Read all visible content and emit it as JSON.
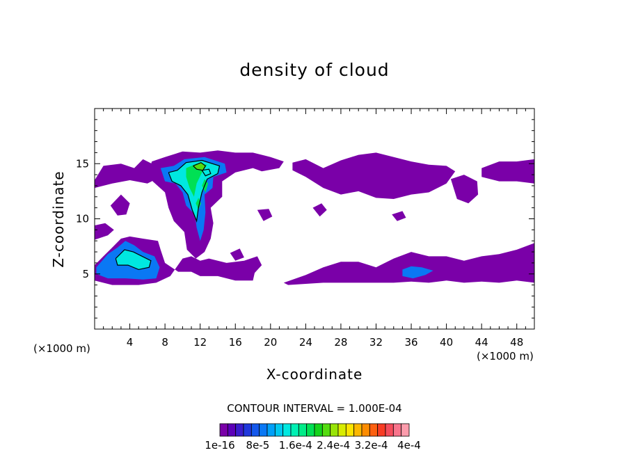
{
  "chart_data": {
    "type": "heatmap",
    "title": "density of cloud",
    "xlabel": "X-coordinate",
    "ylabel": "Z-coordinate",
    "x_unit_left": "(×1000 m)",
    "x_unit_right": "(×1000 m)",
    "xlim": [
      0,
      50
    ],
    "ylim": [
      0,
      20
    ],
    "x_ticks": [
      4,
      8,
      12,
      16,
      20,
      24,
      28,
      32,
      36,
      40,
      44,
      48
    ],
    "y_ticks": [
      5,
      10,
      15
    ],
    "contour_interval_text": "CONTOUR INTERVAL = 1.000E-04",
    "colorbar": {
      "colors": [
        "#7a00a8",
        "#5c00b8",
        "#3a1ccc",
        "#2038dc",
        "#1458ec",
        "#0a78f4",
        "#00a0f8",
        "#00c8f0",
        "#00e8e0",
        "#00f0b4",
        "#00ec88",
        "#00e054",
        "#14d41c",
        "#54dc10",
        "#98e408",
        "#d8ec00",
        "#fce400",
        "#fcb800",
        "#fc8c00",
        "#fc6010",
        "#f83c24",
        "#f44c5c",
        "#f8748c",
        "#fc9cac"
      ],
      "tick_labels": [
        "1e-16",
        "8e-5",
        "1.6e-4",
        "2.4e-4",
        "3.2e-4",
        "4e-4"
      ]
    },
    "regions": [
      {
        "level": "1e-16",
        "points": [
          [
            0,
            13.5
          ],
          [
            1,
            14.8
          ],
          [
            3,
            15
          ],
          [
            4.5,
            14.6
          ],
          [
            5.5,
            15.4
          ],
          [
            7,
            14.8
          ],
          [
            7.5,
            13.8
          ],
          [
            6,
            13.2
          ],
          [
            4,
            13.5
          ],
          [
            2,
            13.2
          ],
          [
            0,
            12.8
          ]
        ]
      },
      {
        "level": "1e-16",
        "points": [
          [
            6.5,
            15.2
          ],
          [
            8,
            15.6
          ],
          [
            10,
            16.1
          ],
          [
            12,
            16
          ],
          [
            14,
            16.2
          ],
          [
            16,
            16
          ],
          [
            18,
            16
          ],
          [
            20,
            15.6
          ],
          [
            21.5,
            15.2
          ],
          [
            21,
            14.6
          ],
          [
            19,
            14.3
          ],
          [
            18,
            14.6
          ],
          [
            16,
            14.2
          ],
          [
            14.5,
            13.4
          ],
          [
            14.5,
            12
          ],
          [
            13.2,
            11
          ],
          [
            13.5,
            9.6
          ],
          [
            13.2,
            8.2
          ],
          [
            12.5,
            7
          ],
          [
            11.5,
            6.4
          ],
          [
            10.5,
            7.2
          ],
          [
            10.2,
            8.8
          ],
          [
            9,
            9.8
          ],
          [
            8.4,
            11
          ],
          [
            8,
            12.4
          ],
          [
            6.6,
            13.4
          ],
          [
            6.2,
            14.4
          ]
        ]
      },
      {
        "level": "1e-16",
        "points": [
          [
            0,
            5.8
          ],
          [
            1,
            6.6
          ],
          [
            2,
            7.4
          ],
          [
            3,
            8.2
          ],
          [
            4,
            8.4
          ],
          [
            5.5,
            8.2
          ],
          [
            7.2,
            8
          ],
          [
            7.5,
            7.2
          ],
          [
            8,
            6
          ],
          [
            9.5,
            5.2
          ],
          [
            11,
            5.2
          ],
          [
            12,
            4.8
          ],
          [
            14,
            4.8
          ],
          [
            16,
            4.4
          ],
          [
            18,
            4.4
          ],
          [
            18.2,
            5.1
          ],
          [
            19,
            5.8
          ],
          [
            18.5,
            6.6
          ],
          [
            17,
            6.2
          ],
          [
            15,
            6
          ],
          [
            13,
            6.4
          ],
          [
            12,
            6.2
          ],
          [
            11,
            6.6
          ],
          [
            10,
            6.4
          ],
          [
            8.6,
            4.8
          ],
          [
            7,
            4.2
          ],
          [
            5,
            4
          ],
          [
            2,
            4
          ],
          [
            0,
            4.4
          ]
        ]
      },
      {
        "level": "1e-16",
        "points": [
          [
            0,
            8.1
          ],
          [
            1.5,
            8.5
          ],
          [
            2.2,
            9
          ],
          [
            1.2,
            9.6
          ],
          [
            0,
            9.4
          ]
        ]
      },
      {
        "level": "1e-16",
        "points": [
          [
            1.8,
            11.2
          ],
          [
            3,
            12.2
          ],
          [
            4,
            11.4
          ],
          [
            3.6,
            10.4
          ],
          [
            2.6,
            10.3
          ]
        ]
      },
      {
        "level": "1e-16",
        "points": [
          [
            22.5,
            15.1
          ],
          [
            24,
            15.4
          ],
          [
            26,
            14.6
          ],
          [
            28,
            15.3
          ],
          [
            30,
            15.8
          ],
          [
            32,
            16
          ],
          [
            34,
            15.6
          ],
          [
            36,
            15.2
          ],
          [
            38,
            14.9
          ],
          [
            40,
            14.8
          ],
          [
            41,
            14.3
          ],
          [
            40,
            13.2
          ],
          [
            38,
            12.4
          ],
          [
            36,
            12.2
          ],
          [
            34,
            11.8
          ],
          [
            32,
            11.9
          ],
          [
            30,
            12.5
          ],
          [
            28,
            12.2
          ],
          [
            26,
            12.8
          ],
          [
            24,
            13.8
          ],
          [
            22.5,
            14.4
          ]
        ]
      },
      {
        "level": "1e-16",
        "points": [
          [
            44,
            14.6
          ],
          [
            46,
            15.2
          ],
          [
            48,
            15.2
          ],
          [
            50,
            15.4
          ],
          [
            50,
            13.2
          ],
          [
            48,
            13.4
          ],
          [
            46,
            13.4
          ],
          [
            44,
            13.8
          ]
        ]
      },
      {
        "level": "1e-16",
        "points": [
          [
            40.5,
            13.6
          ],
          [
            42,
            14
          ],
          [
            43.5,
            13.4
          ],
          [
            43.6,
            12.2
          ],
          [
            42.5,
            11.4
          ],
          [
            41.2,
            11.8
          ]
        ]
      },
      {
        "level": "1e-16",
        "points": [
          [
            21.5,
            4.2
          ],
          [
            24,
            4.9
          ],
          [
            26,
            5.6
          ],
          [
            28,
            6.1
          ],
          [
            30,
            6.1
          ],
          [
            32,
            5.6
          ],
          [
            34,
            6.4
          ],
          [
            36,
            7
          ],
          [
            38,
            6.6
          ],
          [
            40,
            6.6
          ],
          [
            42,
            6.2
          ],
          [
            44,
            6.6
          ],
          [
            46,
            6.8
          ],
          [
            48,
            7.2
          ],
          [
            50,
            7.8
          ],
          [
            50,
            4.2
          ],
          [
            48,
            4.4
          ],
          [
            46,
            4.2
          ],
          [
            44,
            4.3
          ],
          [
            42,
            4.2
          ],
          [
            40,
            4.4
          ],
          [
            38,
            4.2
          ],
          [
            36,
            4.3
          ],
          [
            34,
            4.2
          ],
          [
            30,
            4.2
          ],
          [
            26,
            4.2
          ],
          [
            22,
            4
          ]
        ]
      },
      {
        "level": "1e-16",
        "points": [
          [
            24.8,
            11
          ],
          [
            25.8,
            11.4
          ],
          [
            26.4,
            10.8
          ],
          [
            25.6,
            10.2
          ]
        ]
      },
      {
        "level": "1e-16",
        "points": [
          [
            18.5,
            10.8
          ],
          [
            19.8,
            10.9
          ],
          [
            20.2,
            10.2
          ],
          [
            19.2,
            9.8
          ]
        ]
      },
      {
        "level": "1e-16",
        "points": [
          [
            33.8,
            10.4
          ],
          [
            35,
            10.7
          ],
          [
            35.4,
            10.1
          ],
          [
            34.4,
            9.8
          ]
        ]
      },
      {
        "level": "1e-16",
        "points": [
          [
            15.4,
            6.9
          ],
          [
            16.5,
            7.3
          ],
          [
            17,
            6.5
          ],
          [
            16,
            6.2
          ]
        ]
      },
      {
        "level": "8e-5",
        "points": [
          [
            7.5,
            14.6
          ],
          [
            9,
            14.8
          ],
          [
            10.2,
            15.4
          ],
          [
            12.5,
            15.6
          ],
          [
            14.8,
            15
          ],
          [
            15,
            14.2
          ],
          [
            13.5,
            13.8
          ],
          [
            13.4,
            12.8
          ],
          [
            12.5,
            12.2
          ],
          [
            12.6,
            10.6
          ],
          [
            12.4,
            9
          ],
          [
            12,
            8
          ],
          [
            11.6,
            9.2
          ],
          [
            11.4,
            10.4
          ],
          [
            10.4,
            11.2
          ],
          [
            10,
            12.4
          ],
          [
            9.2,
            13.2
          ],
          [
            8,
            13.4
          ]
        ]
      },
      {
        "level": "8e-5",
        "points": [
          [
            0.2,
            5.6
          ],
          [
            1.5,
            6.8
          ],
          [
            2.6,
            7.4
          ],
          [
            3.5,
            8
          ],
          [
            4.5,
            7.6
          ],
          [
            5.5,
            7
          ],
          [
            6.8,
            6.6
          ],
          [
            7.4,
            5.6
          ],
          [
            7,
            4.6
          ],
          [
            5.5,
            4.5
          ],
          [
            3.5,
            4.6
          ],
          [
            1.5,
            4.6
          ],
          [
            0.2,
            5
          ]
        ]
      },
      {
        "level": "8e-5",
        "points": [
          [
            35,
            5.4
          ],
          [
            36,
            5.7
          ],
          [
            37.2,
            5.6
          ],
          [
            38.5,
            5.3
          ],
          [
            37.6,
            4.9
          ],
          [
            36.2,
            4.6
          ],
          [
            35,
            4.8
          ]
        ]
      },
      {
        "level": "1.6e-4",
        "points": [
          [
            8.4,
            14.2
          ],
          [
            9.4,
            14.4
          ],
          [
            10.4,
            15.1
          ],
          [
            12.2,
            15.3
          ],
          [
            14.2,
            14.8
          ],
          [
            14,
            14.1
          ],
          [
            12.8,
            13.6
          ],
          [
            12.2,
            12.4
          ],
          [
            11.8,
            11
          ],
          [
            11.6,
            9.8
          ],
          [
            11.1,
            10.8
          ],
          [
            10.6,
            12.2
          ],
          [
            9.8,
            13
          ],
          [
            8.8,
            13.4
          ]
        ]
      },
      {
        "level": "1.6e-4",
        "points": [
          [
            2.4,
            6.4
          ],
          [
            3.4,
            7.2
          ],
          [
            4.4,
            7
          ],
          [
            5.4,
            6.6
          ],
          [
            6.4,
            6.2
          ],
          [
            6.2,
            5.6
          ],
          [
            5,
            5.4
          ],
          [
            3.8,
            5.8
          ],
          [
            2.6,
            5.8
          ]
        ]
      },
      {
        "level": "2.4e-4",
        "points": [
          [
            10.4,
            14.6
          ],
          [
            11.6,
            15
          ],
          [
            12.8,
            14.9
          ],
          [
            12.2,
            14.2
          ],
          [
            11.6,
            13.2
          ],
          [
            11.3,
            12
          ],
          [
            10.8,
            12.8
          ],
          [
            10.4,
            13.8
          ]
        ]
      },
      {
        "level": "2.4e-4",
        "points": [
          [
            12.2,
            13
          ],
          [
            12.5,
            13.6
          ],
          [
            12.9,
            13.2
          ],
          [
            12.6,
            12.4
          ]
        ]
      },
      {
        "level": "2.4e-4",
        "points": [
          [
            11.5,
            11.4
          ],
          [
            11.8,
            11.9
          ],
          [
            12.1,
            11.4
          ],
          [
            11.8,
            10.8
          ]
        ]
      },
      {
        "level": "3.2e-4",
        "points": [
          [
            11.2,
            14.8
          ],
          [
            12.1,
            15.1
          ],
          [
            12.6,
            14.8
          ],
          [
            12.3,
            14.4
          ],
          [
            11.6,
            14.5
          ]
        ]
      }
    ],
    "contour_lines": [
      {
        "level": "1.6e-4",
        "points": [
          [
            8.4,
            14.2
          ],
          [
            9.4,
            14.4
          ],
          [
            10.4,
            15.1
          ],
          [
            12.2,
            15.3
          ],
          [
            14.2,
            14.8
          ],
          [
            14,
            14.1
          ],
          [
            12.8,
            13.6
          ],
          [
            12.2,
            12.4
          ],
          [
            11.8,
            11
          ],
          [
            11.6,
            9.8
          ],
          [
            11.1,
            10.8
          ],
          [
            10.6,
            12.2
          ],
          [
            9.8,
            13
          ],
          [
            8.8,
            13.4
          ],
          [
            8.4,
            14.2
          ]
        ]
      },
      {
        "level": "1.6e-4",
        "points": [
          [
            2.4,
            6.4
          ],
          [
            3.4,
            7.2
          ],
          [
            4.4,
            7
          ],
          [
            5.4,
            6.6
          ],
          [
            6.4,
            6.2
          ],
          [
            6.2,
            5.6
          ],
          [
            5,
            5.4
          ],
          [
            3.8,
            5.8
          ],
          [
            2.6,
            5.8
          ],
          [
            2.4,
            6.4
          ]
        ]
      },
      {
        "level": "3.2e-4",
        "points": [
          [
            11.2,
            14.8
          ],
          [
            12.1,
            15.1
          ],
          [
            12.6,
            14.8
          ],
          [
            12.3,
            14.4
          ],
          [
            11.6,
            14.5
          ],
          [
            11.2,
            14.8
          ]
        ]
      },
      {
        "level": "3.2e-4",
        "points": [
          [
            12.2,
            14.4
          ],
          [
            13,
            14.5
          ],
          [
            13.2,
            14.1
          ],
          [
            12.6,
            13.9
          ],
          [
            12.2,
            14.4
          ]
        ]
      }
    ]
  }
}
